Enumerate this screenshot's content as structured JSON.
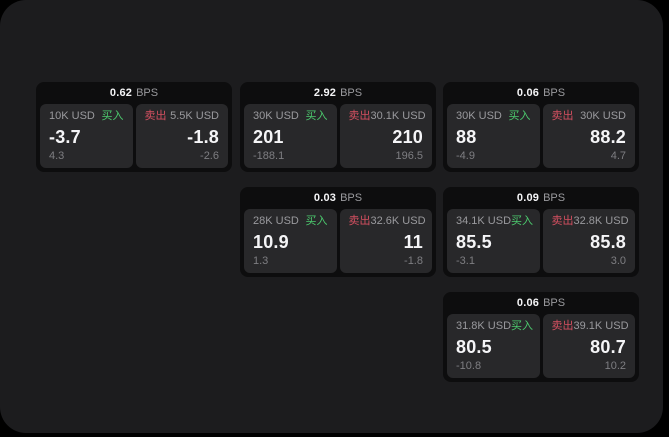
{
  "colors": {
    "page_bg": "#000000",
    "panel_bg": "#1c1c1e",
    "card_bg": "#0d0d0e",
    "tile_bg": "#28282a",
    "text_primary": "#f5f5f7",
    "text_secondary": "#9a9a9e",
    "text_tertiary": "#7e7e82",
    "buy_green": "#4cca6e",
    "sell_red": "#d44f60"
  },
  "labels": {
    "bps_unit": "BPS",
    "buy": "买入",
    "sell": "卖出"
  },
  "cards": [
    {
      "bps": "0.62",
      "buy": {
        "amount": "10K USD",
        "value": "-3.7",
        "delta": "4.3"
      },
      "sell": {
        "amount": "5.5K USD",
        "value": "-1.8",
        "delta": "-2.6"
      }
    },
    {
      "bps": "2.92",
      "buy": {
        "amount": "30K USD",
        "value": "201",
        "delta": "-188.1"
      },
      "sell": {
        "amount": "30.1K USD",
        "value": "210",
        "delta": "196.5"
      }
    },
    {
      "bps": "0.06",
      "buy": {
        "amount": "30K USD",
        "value": "88",
        "delta": "-4.9"
      },
      "sell": {
        "amount": "30K USD",
        "value": "88.2",
        "delta": "4.7"
      }
    },
    {
      "bps": "0.03",
      "buy": {
        "amount": "28K USD",
        "value": "10.9",
        "delta": "1.3"
      },
      "sell": {
        "amount": "32.6K USD",
        "value": "11",
        "delta": "-1.8"
      }
    },
    {
      "bps": "0.09",
      "buy": {
        "amount": "34.1K USD",
        "value": "85.5",
        "delta": "-3.1"
      },
      "sell": {
        "amount": "32.8K USD",
        "value": "85.8",
        "delta": "3.0"
      }
    },
    {
      "bps": "0.06",
      "buy": {
        "amount": "31.8K USD",
        "value": "80.5",
        "delta": "-10.8"
      },
      "sell": {
        "amount": "39.1K USD",
        "value": "80.7",
        "delta": "10.2"
      }
    }
  ]
}
